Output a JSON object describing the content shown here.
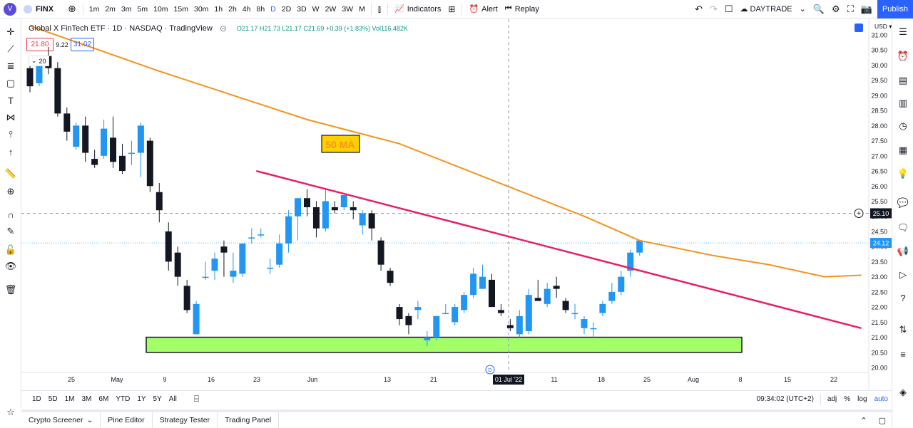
{
  "topbar": {
    "avatar": "V",
    "symbol": "FINX",
    "intervals": [
      "1m",
      "2m",
      "3m",
      "5m",
      "10m",
      "15m",
      "30m",
      "1h",
      "2h",
      "4h",
      "8h",
      "D",
      "2D",
      "3D",
      "W",
      "2W",
      "3W",
      "M"
    ],
    "active_interval": "D",
    "indicators_label": "Indicators",
    "alert_label": "Alert",
    "replay_label": "Replay",
    "layout_name": "DAYTRADE",
    "publish_label": "Publish"
  },
  "legend": {
    "title": "Global X FinTech ETF · 1D · NASDAQ · TradingView",
    "ohlc": "O21.17 H21.73 L21.17 C21.69 +0.39 (+1.83%) Vol116.482K",
    "bid": "21.80",
    "spread": "9.22",
    "ask": "31.02",
    "collapse_count": "20"
  },
  "chart_data": {
    "type": "candlestick",
    "currency": "USD",
    "y_ticks": [
      "31.00",
      "30.50",
      "30.00",
      "29.50",
      "29.00",
      "28.50",
      "28.00",
      "27.50",
      "27.00",
      "26.50",
      "26.00",
      "25.50",
      "25.00",
      "24.50",
      "24.00",
      "23.50",
      "23.00",
      "22.50",
      "22.00",
      "21.50",
      "21.00",
      "20.50",
      "20.00"
    ],
    "x_ticks": [
      "25",
      "May",
      "9",
      "16",
      "23",
      "Jun",
      "13",
      "21",
      "01 Jul '22",
      "11",
      "18",
      "25",
      "Aug",
      "8",
      "15",
      "22"
    ],
    "crosshair_price": "25.10",
    "last_price": "24.12",
    "annotation": "50 MA",
    "earnings_marker": "D",
    "colors": {
      "up": "#2196f3",
      "down": "#131722",
      "ma": "#f7931a",
      "trend": "#e91e63",
      "zone": "#a3ff68"
    },
    "candles": [
      [
        29.9,
        30.1,
        29.1,
        29.3
      ],
      [
        29.4,
        30.2,
        29.3,
        30.0
      ],
      [
        30.3,
        30.6,
        29.7,
        29.9
      ],
      [
        29.9,
        30.1,
        28.3,
        28.4
      ],
      [
        28.4,
        28.6,
        27.5,
        27.8
      ],
      [
        27.3,
        28.1,
        27.2,
        28.0
      ],
      [
        28.0,
        28.3,
        26.8,
        27.1
      ],
      [
        26.9,
        27.2,
        26.6,
        26.7
      ],
      [
        27.0,
        28.2,
        26.9,
        27.9
      ],
      [
        27.6,
        28.3,
        26.6,
        26.8
      ],
      [
        27.0,
        27.4,
        26.4,
        26.5
      ],
      [
        27.1,
        27.5,
        26.7,
        27.1
      ],
      [
        27.1,
        28.1,
        26.3,
        28.0
      ],
      [
        27.5,
        27.6,
        25.8,
        26.0
      ],
      [
        25.8,
        26.1,
        24.8,
        25.2
      ],
      [
        24.5,
        24.8,
        23.2,
        23.5
      ],
      [
        23.8,
        24.0,
        22.7,
        23.0
      ],
      [
        22.7,
        22.9,
        21.8,
        21.9
      ],
      [
        21.1,
        22.2,
        21.1,
        22.1
      ],
      [
        23.0,
        23.5,
        22.9,
        23.0
      ],
      [
        23.2,
        23.8,
        22.9,
        23.6
      ],
      [
        24.0,
        24.2,
        23.0,
        23.8
      ],
      [
        23.0,
        23.8,
        22.8,
        23.2
      ],
      [
        23.1,
        24.1,
        23.0,
        24.1
      ],
      [
        24.3,
        24.6,
        24.1,
        24.3
      ],
      [
        24.4,
        24.6,
        24.3,
        24.4
      ],
      [
        23.3,
        23.6,
        23.1,
        23.3
      ],
      [
        23.4,
        24.4,
        23.3,
        24.1
      ],
      [
        24.1,
        25.2,
        23.8,
        25.0
      ],
      [
        25.0,
        25.6,
        24.2,
        25.6
      ],
      [
        25.6,
        25.9,
        25.0,
        25.3
      ],
      [
        25.3,
        25.5,
        24.3,
        24.6
      ],
      [
        24.6,
        25.9,
        24.5,
        25.5
      ],
      [
        25.3,
        25.5,
        25.1,
        25.2
      ],
      [
        25.3,
        25.7,
        25.2,
        25.7
      ],
      [
        25.3,
        25.5,
        24.9,
        25.2
      ],
      [
        24.7,
        25.2,
        24.4,
        25.1
      ],
      [
        25.1,
        25.2,
        24.2,
        24.6
      ],
      [
        24.2,
        24.3,
        23.2,
        23.4
      ],
      [
        23.2,
        23.3,
        22.7,
        22.8
      ],
      [
        22.0,
        22.1,
        21.4,
        21.6
      ],
      [
        21.7,
        21.8,
        21.1,
        21.4
      ],
      [
        21.9,
        22.2,
        21.6,
        22.0
      ],
      [
        20.9,
        21.2,
        20.7,
        21.0
      ],
      [
        21.0,
        21.7,
        20.9,
        21.7
      ],
      [
        21.8,
        22.1,
        21.8,
        21.8
      ],
      [
        21.5,
        22.1,
        21.4,
        22.0
      ],
      [
        21.9,
        22.5,
        21.8,
        22.4
      ],
      [
        22.4,
        23.3,
        22.3,
        23.1
      ],
      [
        22.6,
        23.4,
        22.6,
        23.0
      ],
      [
        22.9,
        23.1,
        22.0,
        22.0
      ],
      [
        21.9,
        22.1,
        21.7,
        21.8
      ],
      [
        21.4,
        21.6,
        21.2,
        21.3
      ],
      [
        21.1,
        21.9,
        21.0,
        21.7
      ],
      [
        21.2,
        22.6,
        21.1,
        22.4
      ],
      [
        22.3,
        22.9,
        22.2,
        22.2
      ],
      [
        22.1,
        22.8,
        22.0,
        22.6
      ],
      [
        22.7,
        23.0,
        22.3,
        22.6
      ],
      [
        22.2,
        22.3,
        21.8,
        21.9
      ],
      [
        21.8,
        22.1,
        21.6,
        21.8
      ],
      [
        21.3,
        21.7,
        21.1,
        21.6
      ],
      [
        21.3,
        21.5,
        21.0,
        21.3
      ],
      [
        21.8,
        22.2,
        21.7,
        22.1
      ],
      [
        22.2,
        22.8,
        22.1,
        22.5
      ],
      [
        22.5,
        23.2,
        22.4,
        23.0
      ],
      [
        23.2,
        23.9,
        23.0,
        23.8
      ],
      [
        23.8,
        24.2,
        23.7,
        24.2
      ]
    ],
    "ma50": [
      [
        0,
        31.3
      ],
      [
        14,
        29.8
      ],
      [
        22,
        29.0
      ],
      [
        30,
        28.2
      ],
      [
        40,
        27.4
      ],
      [
        50,
        26.2
      ],
      [
        60,
        25.0
      ],
      [
        66,
        24.2
      ],
      [
        74,
        23.7
      ],
      [
        80,
        23.4
      ],
      [
        86,
        23.0
      ],
      [
        90,
        23.05
      ]
    ],
    "trendline": [
      [
        24.5,
        26.5
      ],
      [
        90,
        21.3
      ]
    ],
    "support_zone": [
      20.5,
      21.0
    ]
  },
  "bottombar": {
    "ranges": [
      "1D",
      "5D",
      "1M",
      "3M",
      "6M",
      "YTD",
      "1Y",
      "5Y",
      "All"
    ],
    "time": "09:34:02 (UTC+2)",
    "adj": "adj",
    "percent": "%",
    "log": "log",
    "auto": "auto"
  },
  "panels": [
    "Crypto Screener",
    "Pine Editor",
    "Strategy Tester",
    "Trading Panel"
  ]
}
